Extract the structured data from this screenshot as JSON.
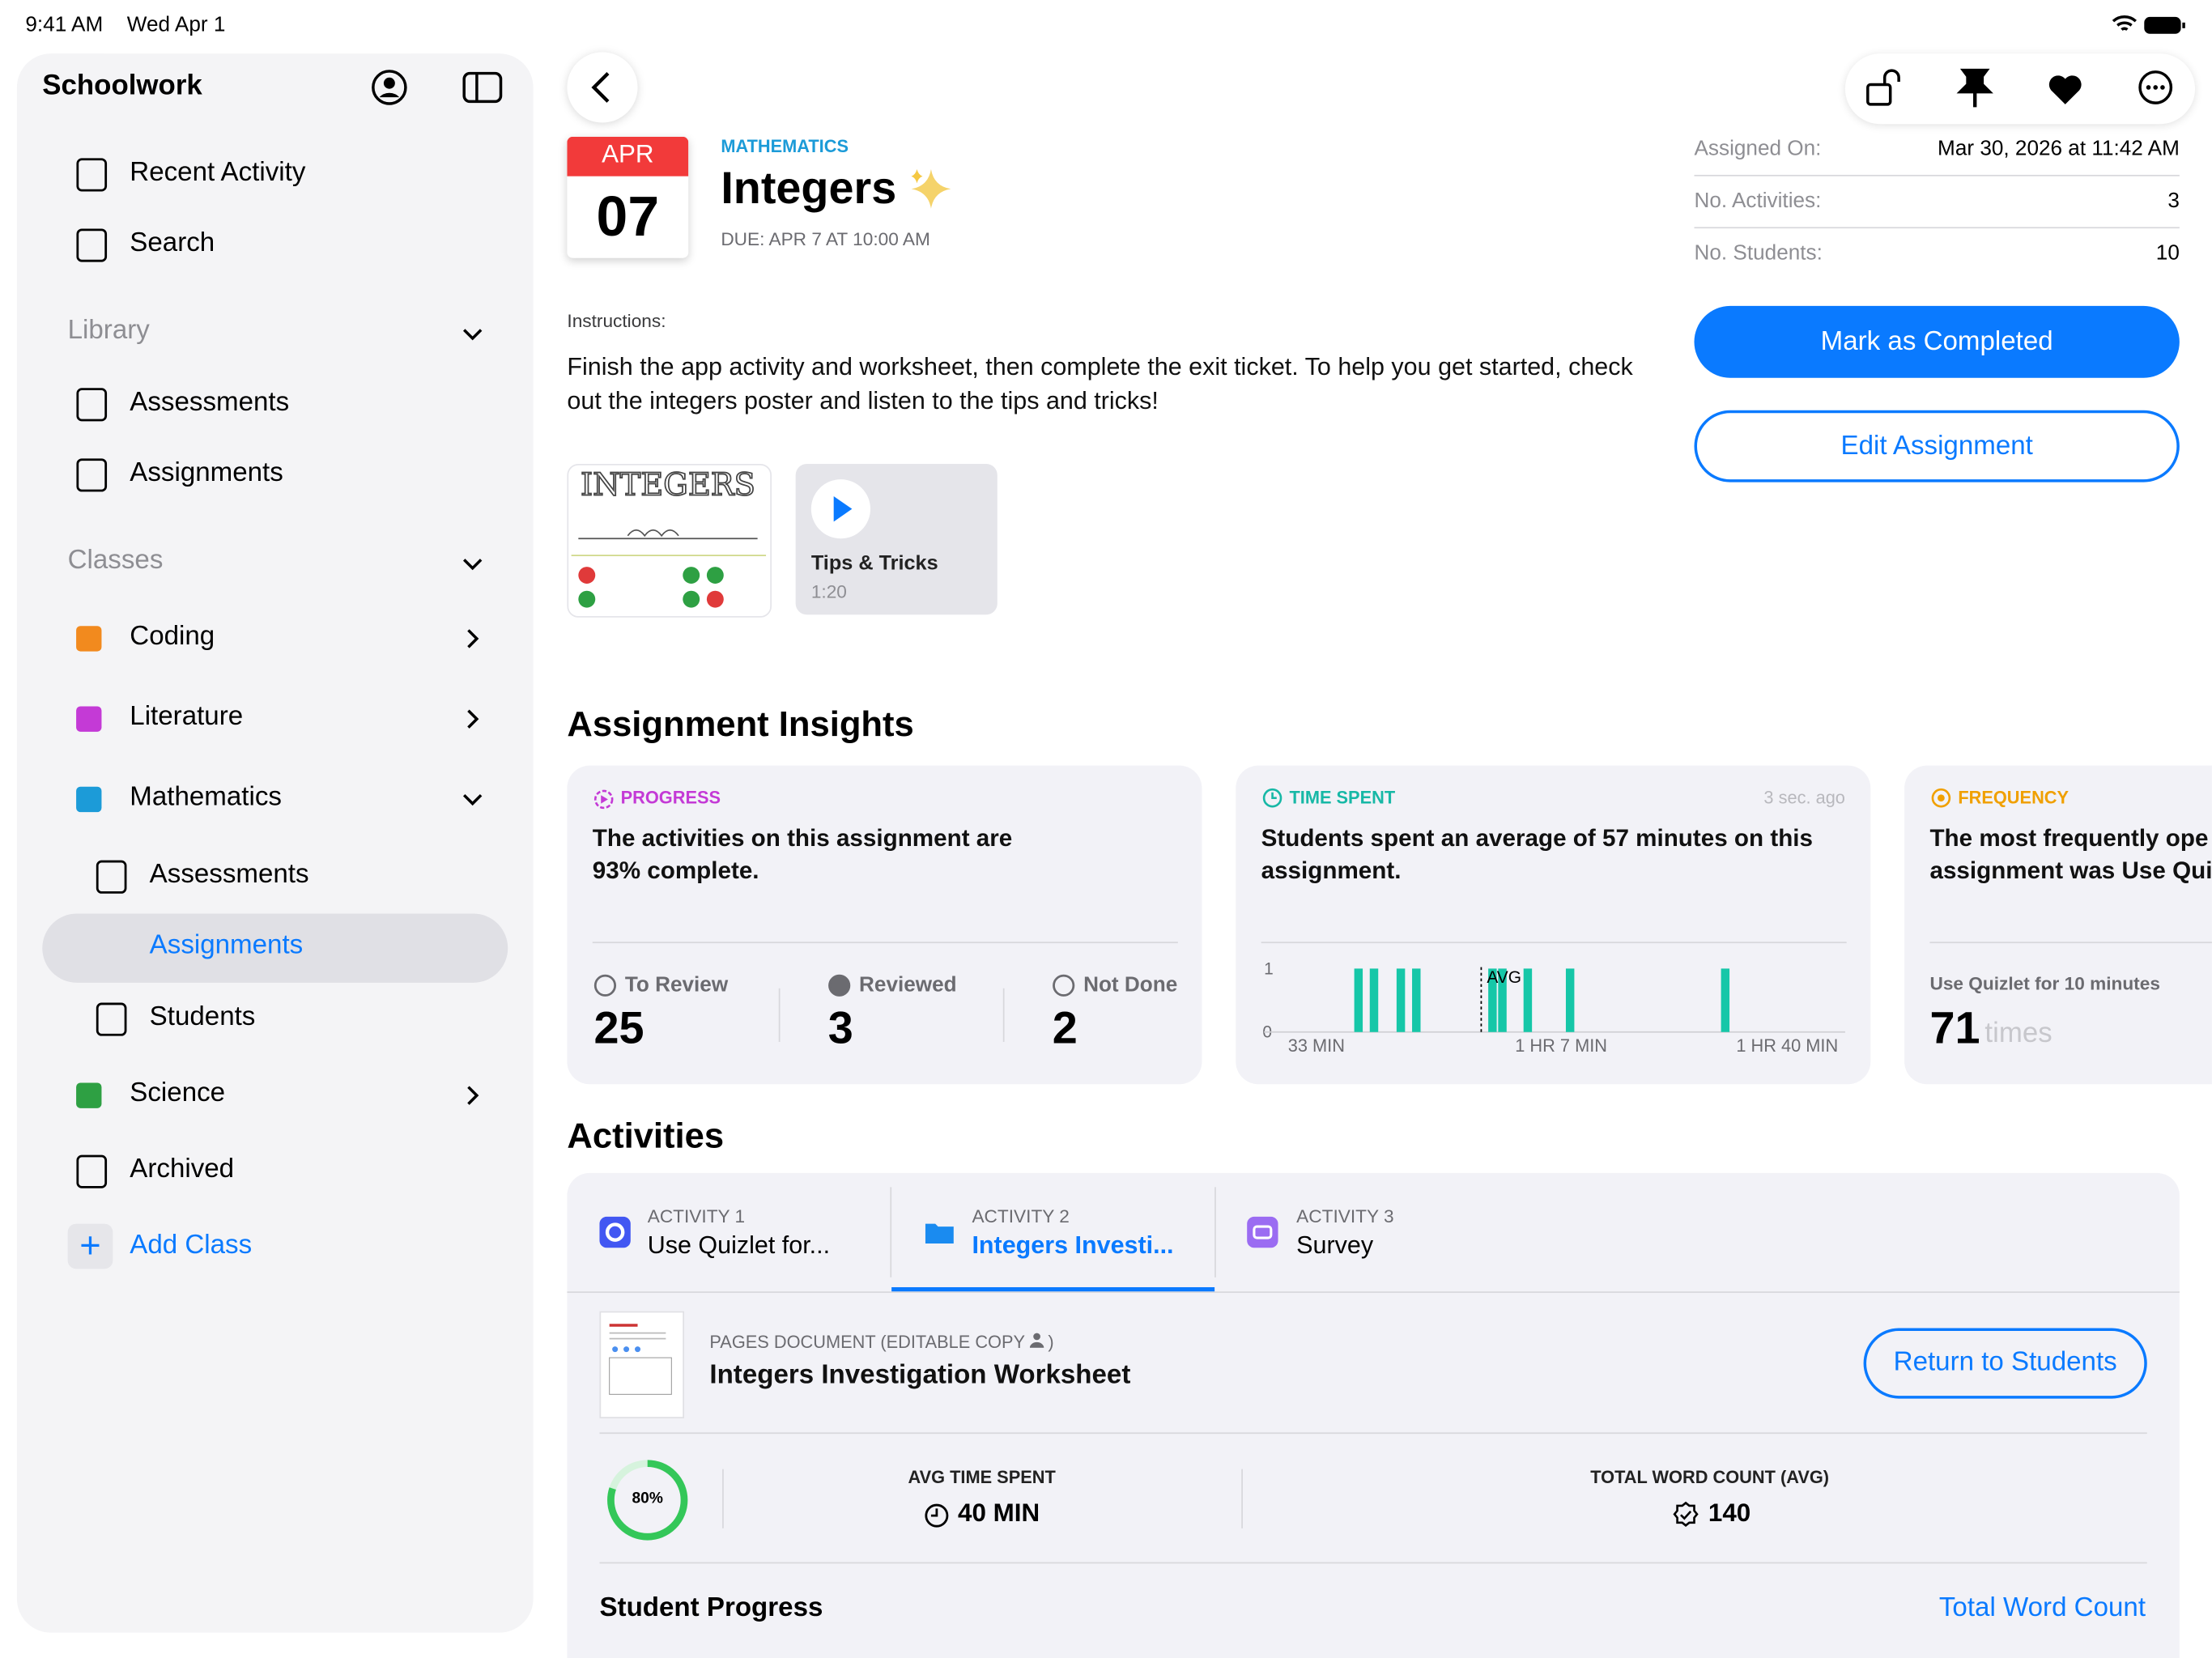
{
  "status": {
    "time": "9:41 AM",
    "date": "Wed Apr 1"
  },
  "sidebar": {
    "title": "Schoolwork",
    "top_items": [
      "Recent Activity",
      "Search"
    ],
    "library": {
      "label": "Library",
      "items": [
        "Assessments",
        "Assignments"
      ]
    },
    "classes": {
      "label": "Classes",
      "items": [
        "Coding",
        "Literature",
        "Mathematics"
      ],
      "math_items": [
        "Assessments",
        "Assignments",
        "Students"
      ],
      "after": [
        "Science"
      ]
    },
    "archived": "Archived",
    "add_class": "Add Class"
  },
  "header": {
    "month": "APR",
    "day": "07",
    "subject": "MATHEMATICS",
    "title": "Integers",
    "due": "DUE: APR 7 AT 10:00 AM"
  },
  "details": [
    {
      "label": "Assigned On:",
      "value": "Mar 30, 2026 at 11:42 AM"
    },
    {
      "label": "No. Activities:",
      "value": "3"
    },
    {
      "label": "No. Students:",
      "value": "10"
    }
  ],
  "buttons": {
    "complete": "Mark as Completed",
    "edit": "Edit Assignment"
  },
  "instructions": {
    "label": "Instructions:",
    "text": "Finish the app activity and worksheet, then complete the exit ticket. To help you get started, check out the integers poster and listen to the tips and tricks!"
  },
  "attachments": {
    "poster": "INTEGERS",
    "video": {
      "title": "Tips & Tricks",
      "duration": "1:20"
    }
  },
  "insights": {
    "heading": "Assignment Insights",
    "progress": {
      "label": "PROGRESS",
      "text": "The activities on this assignment are 93% complete.",
      "stats": [
        {
          "label": "To Review",
          "value": "25"
        },
        {
          "label": "Reviewed",
          "value": "3"
        },
        {
          "label": "Not Done",
          "value": "2"
        }
      ]
    },
    "time": {
      "label": "TIME SPENT",
      "ago": "3 sec. ago",
      "text": "Students spent an average of 57 minutes on this assignment.",
      "y_top": "1",
      "y_bottom": "0",
      "avg": "AVG",
      "x_labels": [
        "33 MIN",
        "1 HR 7 MIN",
        "1 HR 40 MIN"
      ]
    },
    "frequency": {
      "label": "FREQUENCY",
      "lines": [
        "The most frequently ope",
        "assignment was Use Qui"
      ],
      "stat_label": "Use Quizlet for 10 minutes",
      "stat_value": "71",
      "stat_unit": "times"
    }
  },
  "activities": {
    "heading": "Activities",
    "tabs": [
      {
        "label": "ACTIVITY 1",
        "name": "Use Quizlet for..."
      },
      {
        "label": "ACTIVITY 2",
        "name": "Integers Investi..."
      },
      {
        "label": "ACTIVITY 3",
        "name": "Survey"
      }
    ],
    "doc": {
      "kind": "PAGES DOCUMENT (EDITABLE COPY",
      "kind_end": ")",
      "name": "Integers Investigation Worksheet",
      "button": "Return to Students"
    },
    "progress": {
      "value": 80,
      "label": "80%"
    },
    "avg_time": {
      "label": "AVG TIME SPENT",
      "value": "40 MIN"
    },
    "word_count": {
      "label": "TOTAL WORD COUNT (AVG)",
      "value": "140"
    },
    "student_progress": "Student Progress",
    "sort": "Total Word Count"
  }
}
